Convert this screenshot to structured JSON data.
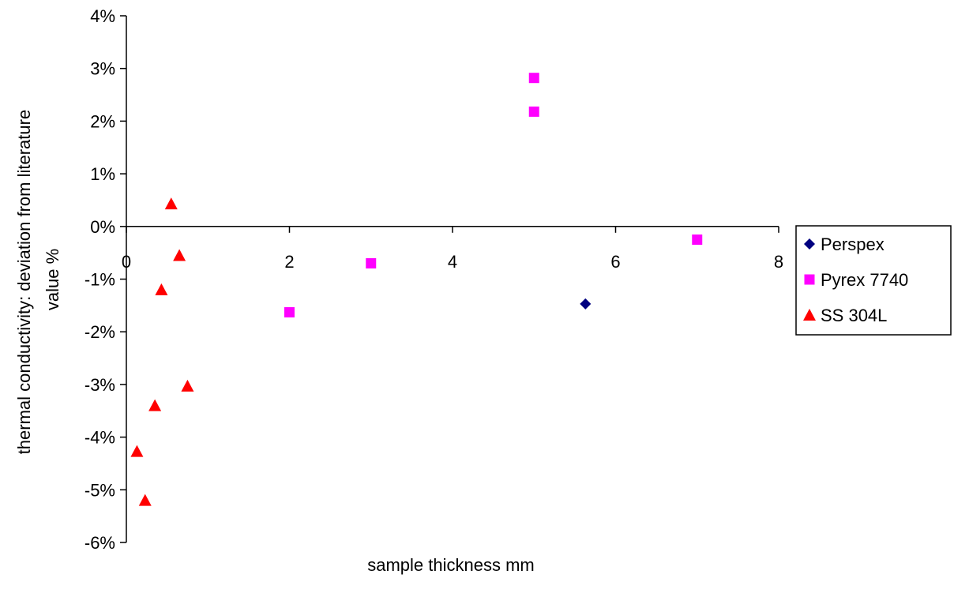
{
  "chart_data": {
    "type": "scatter",
    "title": "",
    "xlabel": "sample thickness mm",
    "ylabel_lines": [
      "thermal conductivity: deviation from literature",
      "value %"
    ],
    "xlim": [
      0,
      8
    ],
    "ylim": [
      -6,
      4
    ],
    "x_ticks": [
      0,
      2,
      4,
      6,
      8
    ],
    "x_tick_labels": [
      "0",
      "2",
      "4",
      "6",
      "8"
    ],
    "y_ticks": [
      4,
      3,
      2,
      1,
      0,
      -1,
      -2,
      -3,
      -4,
      -5,
      -6
    ],
    "y_tick_labels": [
      "4%",
      "3%",
      "2%",
      "1%",
      "0%",
      "-1%",
      "-2%",
      "-3%",
      "-4%",
      "-5%",
      "-6%"
    ],
    "grid": false,
    "legend_position": "right",
    "series": [
      {
        "name": "Perspex",
        "marker": "diamond",
        "color": "#000080",
        "points": [
          {
            "x": 5.63,
            "y": -1.47
          }
        ]
      },
      {
        "name": "Pyrex 7740",
        "marker": "square",
        "color": "#FF00FF",
        "points": [
          {
            "x": 5.0,
            "y": 2.82
          },
          {
            "x": 5.0,
            "y": 2.18
          },
          {
            "x": 7.0,
            "y": -0.25
          },
          {
            "x": 3.0,
            "y": -0.7
          },
          {
            "x": 2.0,
            "y": -1.63
          }
        ]
      },
      {
        "name": "SS 304L",
        "marker": "triangle",
        "color": "#FF0000",
        "points": [
          {
            "x": 0.55,
            "y": 0.43
          },
          {
            "x": 0.65,
            "y": -0.55
          },
          {
            "x": 0.43,
            "y": -1.2
          },
          {
            "x": 0.75,
            "y": -3.03
          },
          {
            "x": 0.35,
            "y": -3.4
          },
          {
            "x": 0.13,
            "y": -4.27
          },
          {
            "x": 0.23,
            "y": -5.2
          }
        ]
      }
    ]
  }
}
